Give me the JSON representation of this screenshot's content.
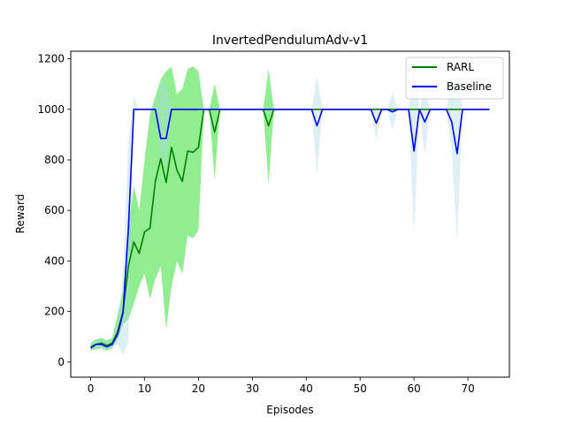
{
  "chart_data": {
    "type": "line",
    "title": "InvertedPendulumAdv-v1",
    "xlabel": "Episodes",
    "ylabel": "Reward",
    "xlim": [
      -3.7,
      77.7
    ],
    "ylim": [
      -60,
      1230
    ],
    "xticks": [
      0,
      10,
      20,
      30,
      40,
      50,
      60,
      70
    ],
    "yticks": [
      0,
      200,
      400,
      600,
      800,
      1000,
      1200
    ],
    "grid": false,
    "legend_position": "top-right",
    "series": [
      {
        "name": "RARL",
        "color": "#008000",
        "band_color": "#90EE90",
        "x": [
          0,
          1,
          2,
          3,
          4,
          5,
          6,
          7,
          8,
          9,
          10,
          11,
          12,
          13,
          14,
          15,
          16,
          17,
          18,
          19,
          20,
          21,
          22,
          23,
          24,
          25,
          26,
          27,
          28,
          29,
          30,
          31,
          32,
          33,
          34,
          35,
          36,
          37,
          38,
          39,
          40,
          41,
          42,
          43,
          44,
          45,
          46,
          47,
          48,
          49,
          50,
          51,
          52,
          53,
          54,
          55,
          56,
          57,
          58,
          59,
          60,
          61,
          62,
          63,
          64,
          65,
          66,
          67,
          68,
          69,
          70,
          71,
          72,
          73,
          74
        ],
        "mean": [
          60,
          70,
          75,
          65,
          75,
          120,
          200,
          380,
          475,
          430,
          515,
          530,
          715,
          805,
          710,
          850,
          760,
          715,
          835,
          830,
          850,
          1000,
          1000,
          910,
          1000,
          1000,
          1000,
          1000,
          1000,
          1000,
          1000,
          1000,
          1000,
          935,
          1000,
          1000,
          1000,
          1000,
          1000,
          1000,
          1000,
          1000,
          1000,
          1000,
          1000,
          1000,
          1000,
          1000,
          1000,
          1000,
          1000,
          1000,
          1000,
          1000,
          1000,
          1000,
          1000,
          1000,
          1000,
          1000,
          1000,
          1000,
          1000,
          1000,
          1000,
          1000,
          1000,
          1000,
          1000,
          1000,
          1000,
          1000,
          1000,
          1000,
          1000
        ],
        "lower": [
          45,
          50,
          55,
          45,
          55,
          90,
          150,
          170,
          230,
          300,
          350,
          250,
          330,
          380,
          130,
          300,
          400,
          350,
          500,
          490,
          520,
          1000,
          1000,
          720,
          1000,
          1000,
          1000,
          1000,
          1000,
          1000,
          1000,
          1000,
          1000,
          705,
          1000,
          1000,
          1000,
          1000,
          1000,
          1000,
          1000,
          1000,
          1000,
          1000,
          1000,
          1000,
          1000,
          1000,
          1000,
          1000,
          1000,
          1000,
          1000,
          1000,
          1000,
          1000,
          1000,
          1000,
          1000,
          1000,
          1000,
          1000,
          1000,
          1000,
          1000,
          1000,
          1000,
          1000,
          1000,
          1000,
          1000,
          1000,
          1000,
          1000,
          1000
        ],
        "upper": [
          75,
          90,
          95,
          85,
          95,
          190,
          280,
          530,
          700,
          600,
          800,
          980,
          1050,
          1120,
          1150,
          1170,
          1060,
          1080,
          1160,
          1170,
          1150,
          1000,
          1000,
          1100,
          1000,
          1000,
          1000,
          1000,
          1000,
          1000,
          1000,
          1000,
          1000,
          1160,
          1000,
          1000,
          1000,
          1000,
          1000,
          1000,
          1000,
          1000,
          1000,
          1000,
          1000,
          1000,
          1000,
          1000,
          1000,
          1000,
          1000,
          1000,
          1000,
          1000,
          1000,
          1000,
          1000,
          1000,
          1000,
          1000,
          1000,
          1000,
          1000,
          1000,
          1000,
          1000,
          1000,
          1000,
          1000,
          1000,
          1000,
          1000,
          1000,
          1000,
          1000
        ]
      },
      {
        "name": "Baseline",
        "color": "#0000FF",
        "band_color": "#ADD8E6",
        "x": [
          0,
          1,
          2,
          3,
          4,
          5,
          6,
          7,
          8,
          9,
          10,
          11,
          12,
          13,
          14,
          15,
          16,
          17,
          18,
          19,
          20,
          21,
          22,
          23,
          24,
          25,
          26,
          27,
          28,
          29,
          30,
          31,
          32,
          33,
          34,
          35,
          36,
          37,
          38,
          39,
          40,
          41,
          42,
          43,
          44,
          45,
          46,
          47,
          48,
          49,
          50,
          51,
          52,
          53,
          54,
          55,
          56,
          57,
          58,
          59,
          60,
          61,
          62,
          63,
          64,
          65,
          66,
          67,
          68,
          69,
          70,
          71,
          72,
          73,
          74
        ],
        "mean": [
          55,
          70,
          70,
          60,
          70,
          110,
          195,
          530,
          1000,
          1000,
          1000,
          1000,
          1000,
          885,
          885,
          1000,
          1000,
          1000,
          1000,
          1000,
          1000,
          1000,
          1000,
          1000,
          1000,
          1000,
          1000,
          1000,
          1000,
          1000,
          1000,
          1000,
          1000,
          1000,
          1000,
          1000,
          1000,
          1000,
          1000,
          1000,
          1000,
          1000,
          935,
          1000,
          1000,
          1000,
          1000,
          1000,
          1000,
          1000,
          1000,
          1000,
          1000,
          945,
          1000,
          1000,
          990,
          1000,
          1000,
          1000,
          835,
          1000,
          950,
          1000,
          1000,
          1000,
          1000,
          950,
          825,
          1000,
          1000,
          1000,
          1000,
          1000,
          1000
        ],
        "lower": [
          45,
          55,
          50,
          45,
          55,
          70,
          30,
          80,
          1000,
          1000,
          1000,
          1000,
          1000,
          780,
          780,
          1000,
          1000,
          1000,
          1000,
          1000,
          1000,
          1000,
          1000,
          1000,
          1000,
          1000,
          1000,
          1000,
          1000,
          1000,
          1000,
          1000,
          1000,
          1000,
          1000,
          1000,
          1000,
          1000,
          1000,
          1000,
          1000,
          1000,
          740,
          1000,
          1000,
          1000,
          1000,
          1000,
          1000,
          1000,
          1000,
          1000,
          1000,
          880,
          1000,
          1000,
          920,
          1000,
          1000,
          1000,
          505,
          1000,
          820,
          1000,
          1000,
          1000,
          1000,
          830,
          480,
          1000,
          1000,
          1000,
          1000,
          1000,
          1000
        ],
        "upper": [
          65,
          85,
          90,
          80,
          90,
          150,
          360,
          880,
          1050,
          1000,
          1000,
          1000,
          1000,
          1120,
          1100,
          1000,
          1000,
          1000,
          1000,
          1000,
          1000,
          1000,
          1000,
          1000,
          1000,
          1000,
          1000,
          1000,
          1000,
          1000,
          1000,
          1000,
          1000,
          1000,
          1000,
          1000,
          1000,
          1000,
          1000,
          1000,
          1000,
          1000,
          1130,
          1000,
          1000,
          1000,
          1000,
          1000,
          1000,
          1000,
          1000,
          1000,
          1000,
          1005,
          1000,
          1000,
          1065,
          1000,
          1000,
          1000,
          1150,
          1000,
          1070,
          1000,
          1000,
          1000,
          1000,
          1100,
          1130,
          1000,
          1000,
          1000,
          1000,
          1000,
          1000
        ]
      }
    ]
  }
}
